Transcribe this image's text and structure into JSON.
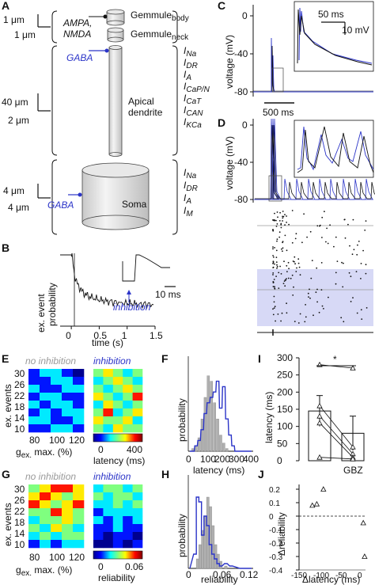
{
  "colors": {
    "blue": "#2b34c8",
    "black": "#111111",
    "gray": "#9a9a9a",
    "shade": "#d7d9f6",
    "bar": "#b0b0b0"
  },
  "panel_labels": {
    "A": "A",
    "B": "B",
    "C": "C",
    "D": "D",
    "E": "E",
    "F": "F",
    "G": "G",
    "H": "H",
    "I": "I",
    "J": "J"
  },
  "panelA": {
    "scale_top_v": "1 μm",
    "scale_top_h": "1 μm",
    "scale_mid_v": "40 μm",
    "scale_mid_h": "2 μm",
    "scale_bot_v": "4 μm",
    "scale_bot_h": "4 μm",
    "synapse_top": "AMPA,",
    "synapse_top2": "NMDA",
    "gemmule_body": "Gemmule",
    "gemmule_body_sub": "body",
    "gemmule_neck": "Gemmule",
    "gemmule_neck_sub": "neck",
    "gaba_dend": "GABA",
    "gaba_soma": "GABA",
    "dendrite_label1": "Apical",
    "dendrite_label2": "dendrite",
    "soma_label": "Soma",
    "dend_currents": [
      "I",
      "I",
      "I",
      "I",
      "I",
      "I",
      "I",
      "I"
    ],
    "dend_current_subs": [
      "Na",
      "DR",
      "A",
      "CaP/N",
      "CaT",
      "CAN",
      "KCa",
      ""
    ],
    "soma_currents": [
      "I",
      "I",
      "I",
      "I"
    ],
    "soma_current_subs": [
      "Na",
      "DR",
      "A",
      "M"
    ]
  },
  "panelB": {
    "ylabel1": "ex. event",
    "ylabel2": "probability",
    "xlabel": "time (s)",
    "xticks": [
      "0",
      "0.5",
      "1",
      "1.5"
    ],
    "arrow_label": "inhibition",
    "inset_scale": "10 ms"
  },
  "panelC": {
    "ylabel": "voltage (mV)",
    "yticks": [
      "0",
      "-40",
      "-80"
    ],
    "scale_time": "500 ms",
    "inset_scale_time": "50 ms",
    "inset_scale_v": "10 mV"
  },
  "panelD": {
    "ylabel": "voltage (mV)",
    "yticks": [
      "0",
      "-40",
      "-80"
    ]
  },
  "panelE": {
    "title_left": "no inhibition",
    "title_right": "inhibition",
    "ylabel": "ex. events",
    "yticks": [
      "30",
      "26",
      "22",
      "18",
      "14",
      "10"
    ],
    "xlabel_main": "g",
    "xlabel_sub": "ex.",
    "xlabel_rest": " max. (%)",
    "xticks": [
      "80",
      "100",
      "120"
    ],
    "cbar_ticks": [
      "0",
      "400"
    ],
    "cbar_label": "latency (ms)"
  },
  "panelF": {
    "ylabel": "probability",
    "xlabel": "latency (ms)",
    "xticks": [
      "0",
      "100",
      "200",
      "300",
      "400"
    ]
  },
  "panelG": {
    "title_left": "no inhibition",
    "title_right": "inhibition",
    "ylabel": "ex. events",
    "yticks": [
      "30",
      "26",
      "22",
      "18",
      "14",
      "10"
    ],
    "xlabel_main": "g",
    "xlabel_sub": "ex.",
    "xlabel_rest": " max. (%)",
    "xticks": [
      "80",
      "100",
      "120"
    ],
    "cbar_ticks": [
      "0",
      "0.06"
    ],
    "cbar_label": "reliability"
  },
  "panelH": {
    "ylabel": "probability",
    "xlabel": "reliability",
    "xticks": [
      "0",
      "0.06",
      "0.12"
    ]
  },
  "panelI": {
    "ylabel": "latency (ms)",
    "yticks": [
      "0",
      "50",
      "100",
      "150",
      "200",
      "250",
      "300"
    ],
    "xtick_right": "GBZ",
    "significance": "*"
  },
  "panelJ": {
    "ylabel": "Δreliability",
    "xlabel": "Δlatency (ms)",
    "yticks": [
      "0.2",
      "0.1",
      "0",
      "-0.1",
      "-0.2",
      "-0.3",
      "-0.4"
    ],
    "xticks": [
      "-150",
      "-100",
      "-50",
      "0"
    ]
  },
  "chart_data": [
    {
      "type": "line",
      "panel": "B",
      "xlabel": "time (s)",
      "ylabel": "ex. event probability",
      "xlim": [
        -0.2,
        1.5
      ],
      "x": [
        -0.2,
        -0.1,
        0.0,
        0.02,
        0.05,
        0.1,
        0.2,
        0.3,
        0.5,
        0.7,
        1.0,
        1.2,
        1.5
      ],
      "y": [
        1.0,
        1.0,
        1.0,
        0.95,
        0.75,
        0.6,
        0.48,
        0.42,
        0.37,
        0.34,
        0.32,
        0.31,
        0.3
      ]
    },
    {
      "type": "bar",
      "panel": "F",
      "xlabel": "latency (ms)",
      "ylabel": "probability",
      "xlim": [
        0,
        400
      ],
      "series": [
        {
          "name": "no inhibition",
          "x": [
            20,
            40,
            60,
            80,
            100,
            120,
            140,
            160,
            180,
            200,
            220,
            240,
            260,
            280,
            300
          ],
          "values": [
            0.01,
            0.02,
            0.05,
            0.12,
            0.2,
            0.28,
            0.26,
            0.18,
            0.12,
            0.06,
            0.03,
            0.01,
            0.0,
            0.0,
            0.0
          ]
        },
        {
          "name": "inhibition",
          "x": [
            20,
            40,
            60,
            80,
            100,
            120,
            140,
            160,
            180,
            200,
            220,
            240,
            260,
            280,
            300
          ],
          "values": [
            0.0,
            0.02,
            0.04,
            0.08,
            0.14,
            0.18,
            0.2,
            0.22,
            0.26,
            0.16,
            0.24,
            0.12,
            0.06,
            0.02,
            0.0
          ]
        }
      ]
    },
    {
      "type": "bar",
      "panel": "H",
      "xlabel": "reliability",
      "ylabel": "probability",
      "xlim": [
        0,
        0.12
      ],
      "series": [
        {
          "name": "no inhibition",
          "x": [
            0.01,
            0.015,
            0.02,
            0.025,
            0.03,
            0.035,
            0.04,
            0.045,
            0.05,
            0.055,
            0.06,
            0.07,
            0.08,
            0.1
          ],
          "values": [
            0.0,
            0.04,
            0.1,
            0.16,
            0.22,
            0.3,
            0.26,
            0.18,
            0.1,
            0.06,
            0.03,
            0.01,
            0.0,
            0.0
          ]
        },
        {
          "name": "inhibition",
          "x": [
            0.01,
            0.015,
            0.02,
            0.025,
            0.03,
            0.035,
            0.04,
            0.045,
            0.05,
            0.055,
            0.06,
            0.07,
            0.08,
            0.1
          ],
          "values": [
            0.06,
            0.3,
            0.28,
            0.14,
            0.22,
            0.18,
            0.1,
            0.06,
            0.04,
            0.02,
            0.01,
            0.02,
            0.01,
            0.0
          ]
        }
      ]
    },
    {
      "type": "bar",
      "panel": "I",
      "ylabel": "latency (ms)",
      "ylim": [
        0,
        300
      ],
      "categories": [
        "",
        "GBZ"
      ],
      "values": [
        145,
        80
      ],
      "errors": [
        45,
        50
      ],
      "points": [
        [
          280,
          270
        ],
        [
          160,
          40
        ],
        [
          130,
          20
        ],
        [
          110,
          10
        ],
        [
          10,
          5
        ]
      ]
    },
    {
      "type": "scatter",
      "panel": "J",
      "xlabel": "Δlatency (ms)",
      "ylabel": "Δreliability",
      "xlim": [
        -150,
        0
      ],
      "ylim": [
        -0.4,
        0.2
      ],
      "x": [
        -120,
        -110,
        -95,
        -5,
        -2
      ],
      "y": [
        0.08,
        0.09,
        0.2,
        -0.05,
        -0.3
      ]
    },
    {
      "type": "heatmap",
      "panel": "E-left",
      "rows": [
        [
          1,
          2,
          2,
          1,
          0
        ],
        [
          1,
          1,
          2,
          2,
          1
        ],
        [
          2,
          1,
          1,
          2,
          2
        ],
        [
          1,
          2,
          2,
          1,
          1
        ],
        [
          2,
          1,
          2,
          2,
          1
        ],
        [
          1,
          2,
          1,
          2,
          2
        ],
        [
          2,
          2,
          1,
          1,
          2
        ],
        [
          1,
          1,
          2,
          2,
          1
        ]
      ]
    },
    {
      "type": "heatmap",
      "panel": "E-right",
      "rows": [
        [
          3,
          4,
          3,
          2,
          3
        ],
        [
          2,
          3,
          4,
          3,
          2
        ],
        [
          3,
          2,
          3,
          4,
          3
        ],
        [
          4,
          3,
          2,
          3,
          5
        ],
        [
          2,
          4,
          3,
          2,
          3
        ],
        [
          3,
          5,
          2,
          3,
          4
        ],
        [
          4,
          3,
          3,
          4,
          2
        ],
        [
          3,
          2,
          4,
          3,
          3
        ]
      ]
    },
    {
      "type": "heatmap",
      "panel": "G-left",
      "rows": [
        [
          3,
          4,
          5,
          5,
          4
        ],
        [
          4,
          5,
          4,
          3,
          4
        ],
        [
          5,
          4,
          3,
          4,
          5
        ],
        [
          3,
          3,
          5,
          4,
          3
        ],
        [
          2,
          3,
          3,
          4,
          3
        ],
        [
          3,
          2,
          4,
          3,
          2
        ],
        [
          2,
          3,
          2,
          3,
          3
        ],
        [
          1,
          2,
          1,
          2,
          2
        ]
      ]
    },
    {
      "type": "heatmap",
      "panel": "G-right",
      "rows": [
        [
          2,
          3,
          3,
          2,
          3
        ],
        [
          3,
          2,
          3,
          3,
          2
        ],
        [
          2,
          2,
          3,
          2,
          3
        ],
        [
          1,
          2,
          2,
          2,
          2
        ],
        [
          2,
          1,
          2,
          1,
          2
        ],
        [
          1,
          1,
          2,
          1,
          1
        ],
        [
          1,
          0,
          1,
          1,
          0
        ],
        [
          0,
          0,
          1,
          0,
          1
        ]
      ]
    }
  ]
}
